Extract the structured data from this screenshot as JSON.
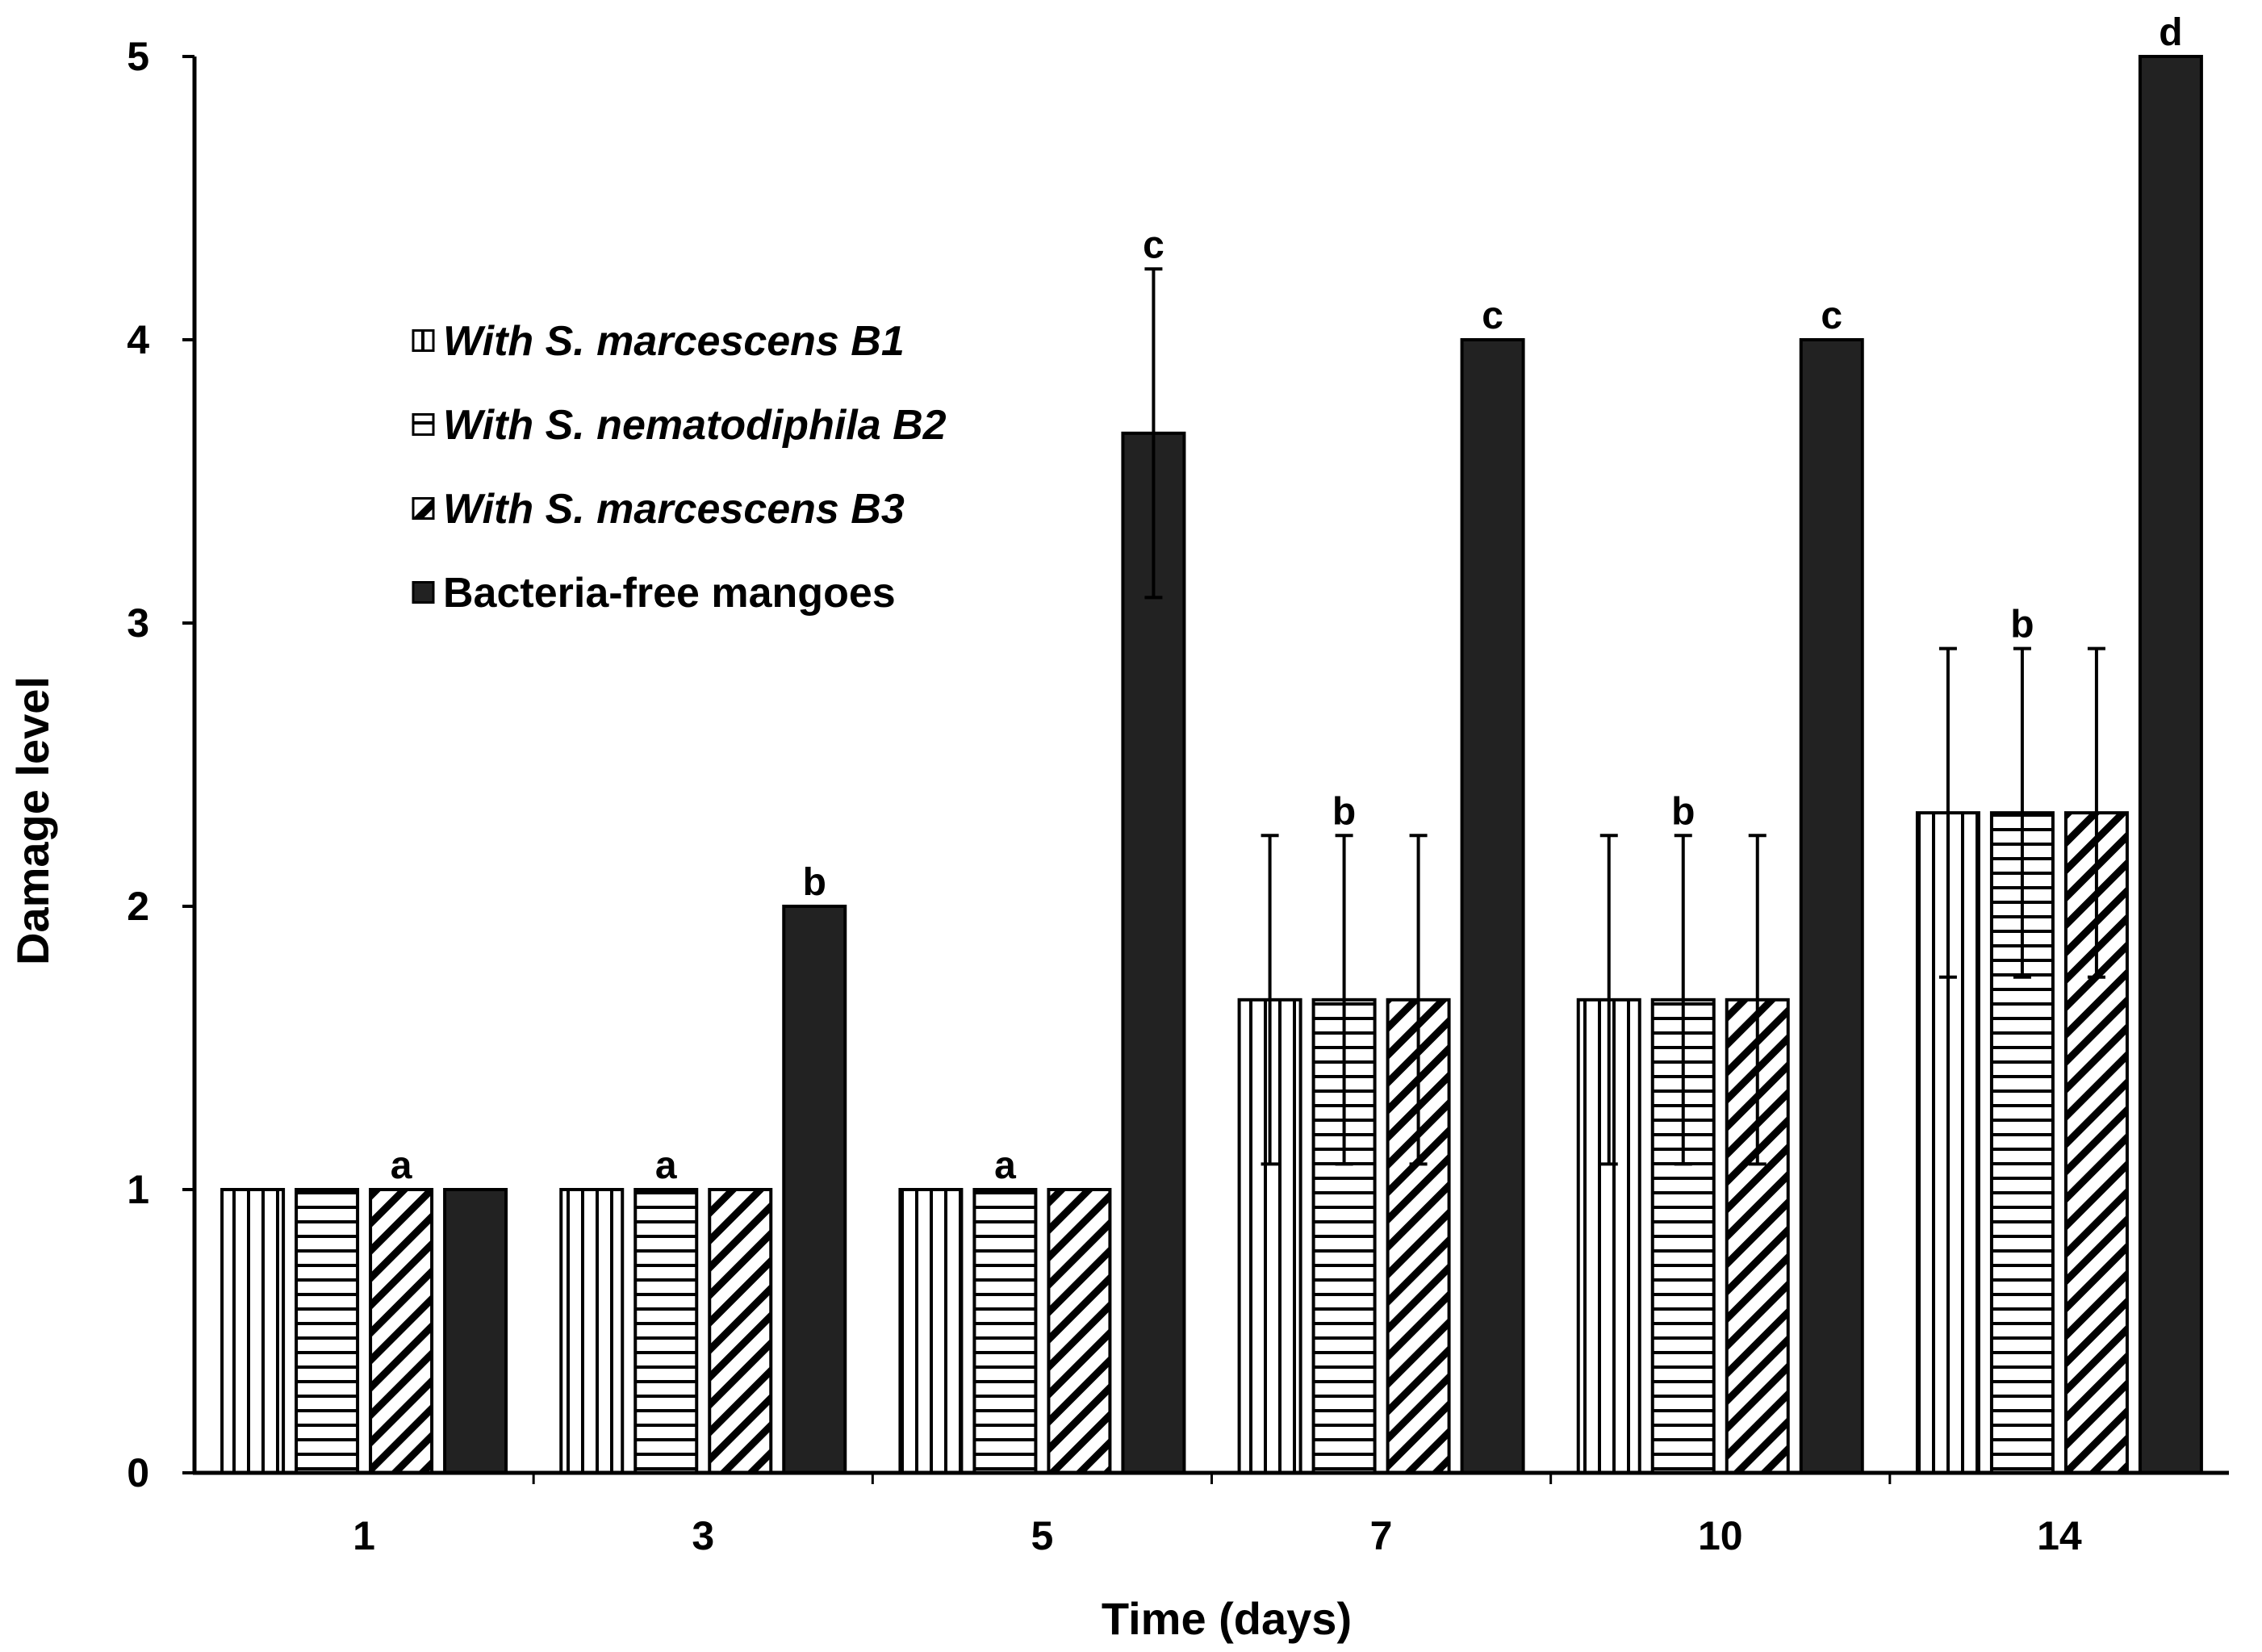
{
  "chart_data": {
    "type": "bar",
    "title": "",
    "xlabel": "Time (days)",
    "ylabel": "Damage level",
    "ylim": [
      0,
      5
    ],
    "yticks": [
      "0",
      "1",
      "2",
      "3",
      "4",
      "5"
    ],
    "categories": [
      "1",
      "3",
      "5",
      "7",
      "10",
      "14"
    ],
    "series": [
      {
        "name": "With S. marcescens B1",
        "italic": true,
        "pattern": "vertical",
        "values": [
          1,
          1,
          1,
          1.67,
          1.67,
          2.33
        ],
        "errors": [
          0,
          0,
          0,
          0.58,
          0.58,
          0.58
        ]
      },
      {
        "name": "With S. nematodiphila B2",
        "italic": true,
        "pattern": "horizontal",
        "values": [
          1,
          1,
          1,
          1.67,
          1.67,
          2.33
        ],
        "errors": [
          0,
          0,
          0,
          0.58,
          0.58,
          0.58
        ]
      },
      {
        "name": "With S. marcescens B3",
        "italic": true,
        "pattern": "diagonal",
        "values": [
          1,
          1,
          1,
          1.67,
          1.67,
          2.33
        ],
        "errors": [
          0,
          0,
          0,
          0.58,
          0.58,
          0.58
        ]
      },
      {
        "name": "Bacteria-free mangoes",
        "italic": false,
        "pattern": "solid",
        "values": [
          1,
          2,
          3.67,
          4,
          4,
          5
        ],
        "errors": [
          0,
          0,
          0.58,
          0,
          0,
          0
        ]
      }
    ],
    "significance_labels": [
      {
        "category": "1",
        "series": 2,
        "label": "a"
      },
      {
        "category": "3",
        "series": 1,
        "label": "a"
      },
      {
        "category": "3",
        "series": 3,
        "label": "b"
      },
      {
        "category": "5",
        "series": 1,
        "label": "a"
      },
      {
        "category": "5",
        "series": 3,
        "label": "c"
      },
      {
        "category": "7",
        "series": 1,
        "label": "b"
      },
      {
        "category": "7",
        "series": 3,
        "label": "c"
      },
      {
        "category": "10",
        "series": 1,
        "label": "b"
      },
      {
        "category": "10",
        "series": 3,
        "label": "c"
      },
      {
        "category": "14",
        "series": 1,
        "label": "b"
      },
      {
        "category": "14",
        "series": 3,
        "label": "d"
      }
    ],
    "legend_position": "upper-left",
    "grid": false,
    "colors": {
      "bar_fill": "#ffffff",
      "bar_stroke": "#000000",
      "solid": "#222222"
    }
  }
}
